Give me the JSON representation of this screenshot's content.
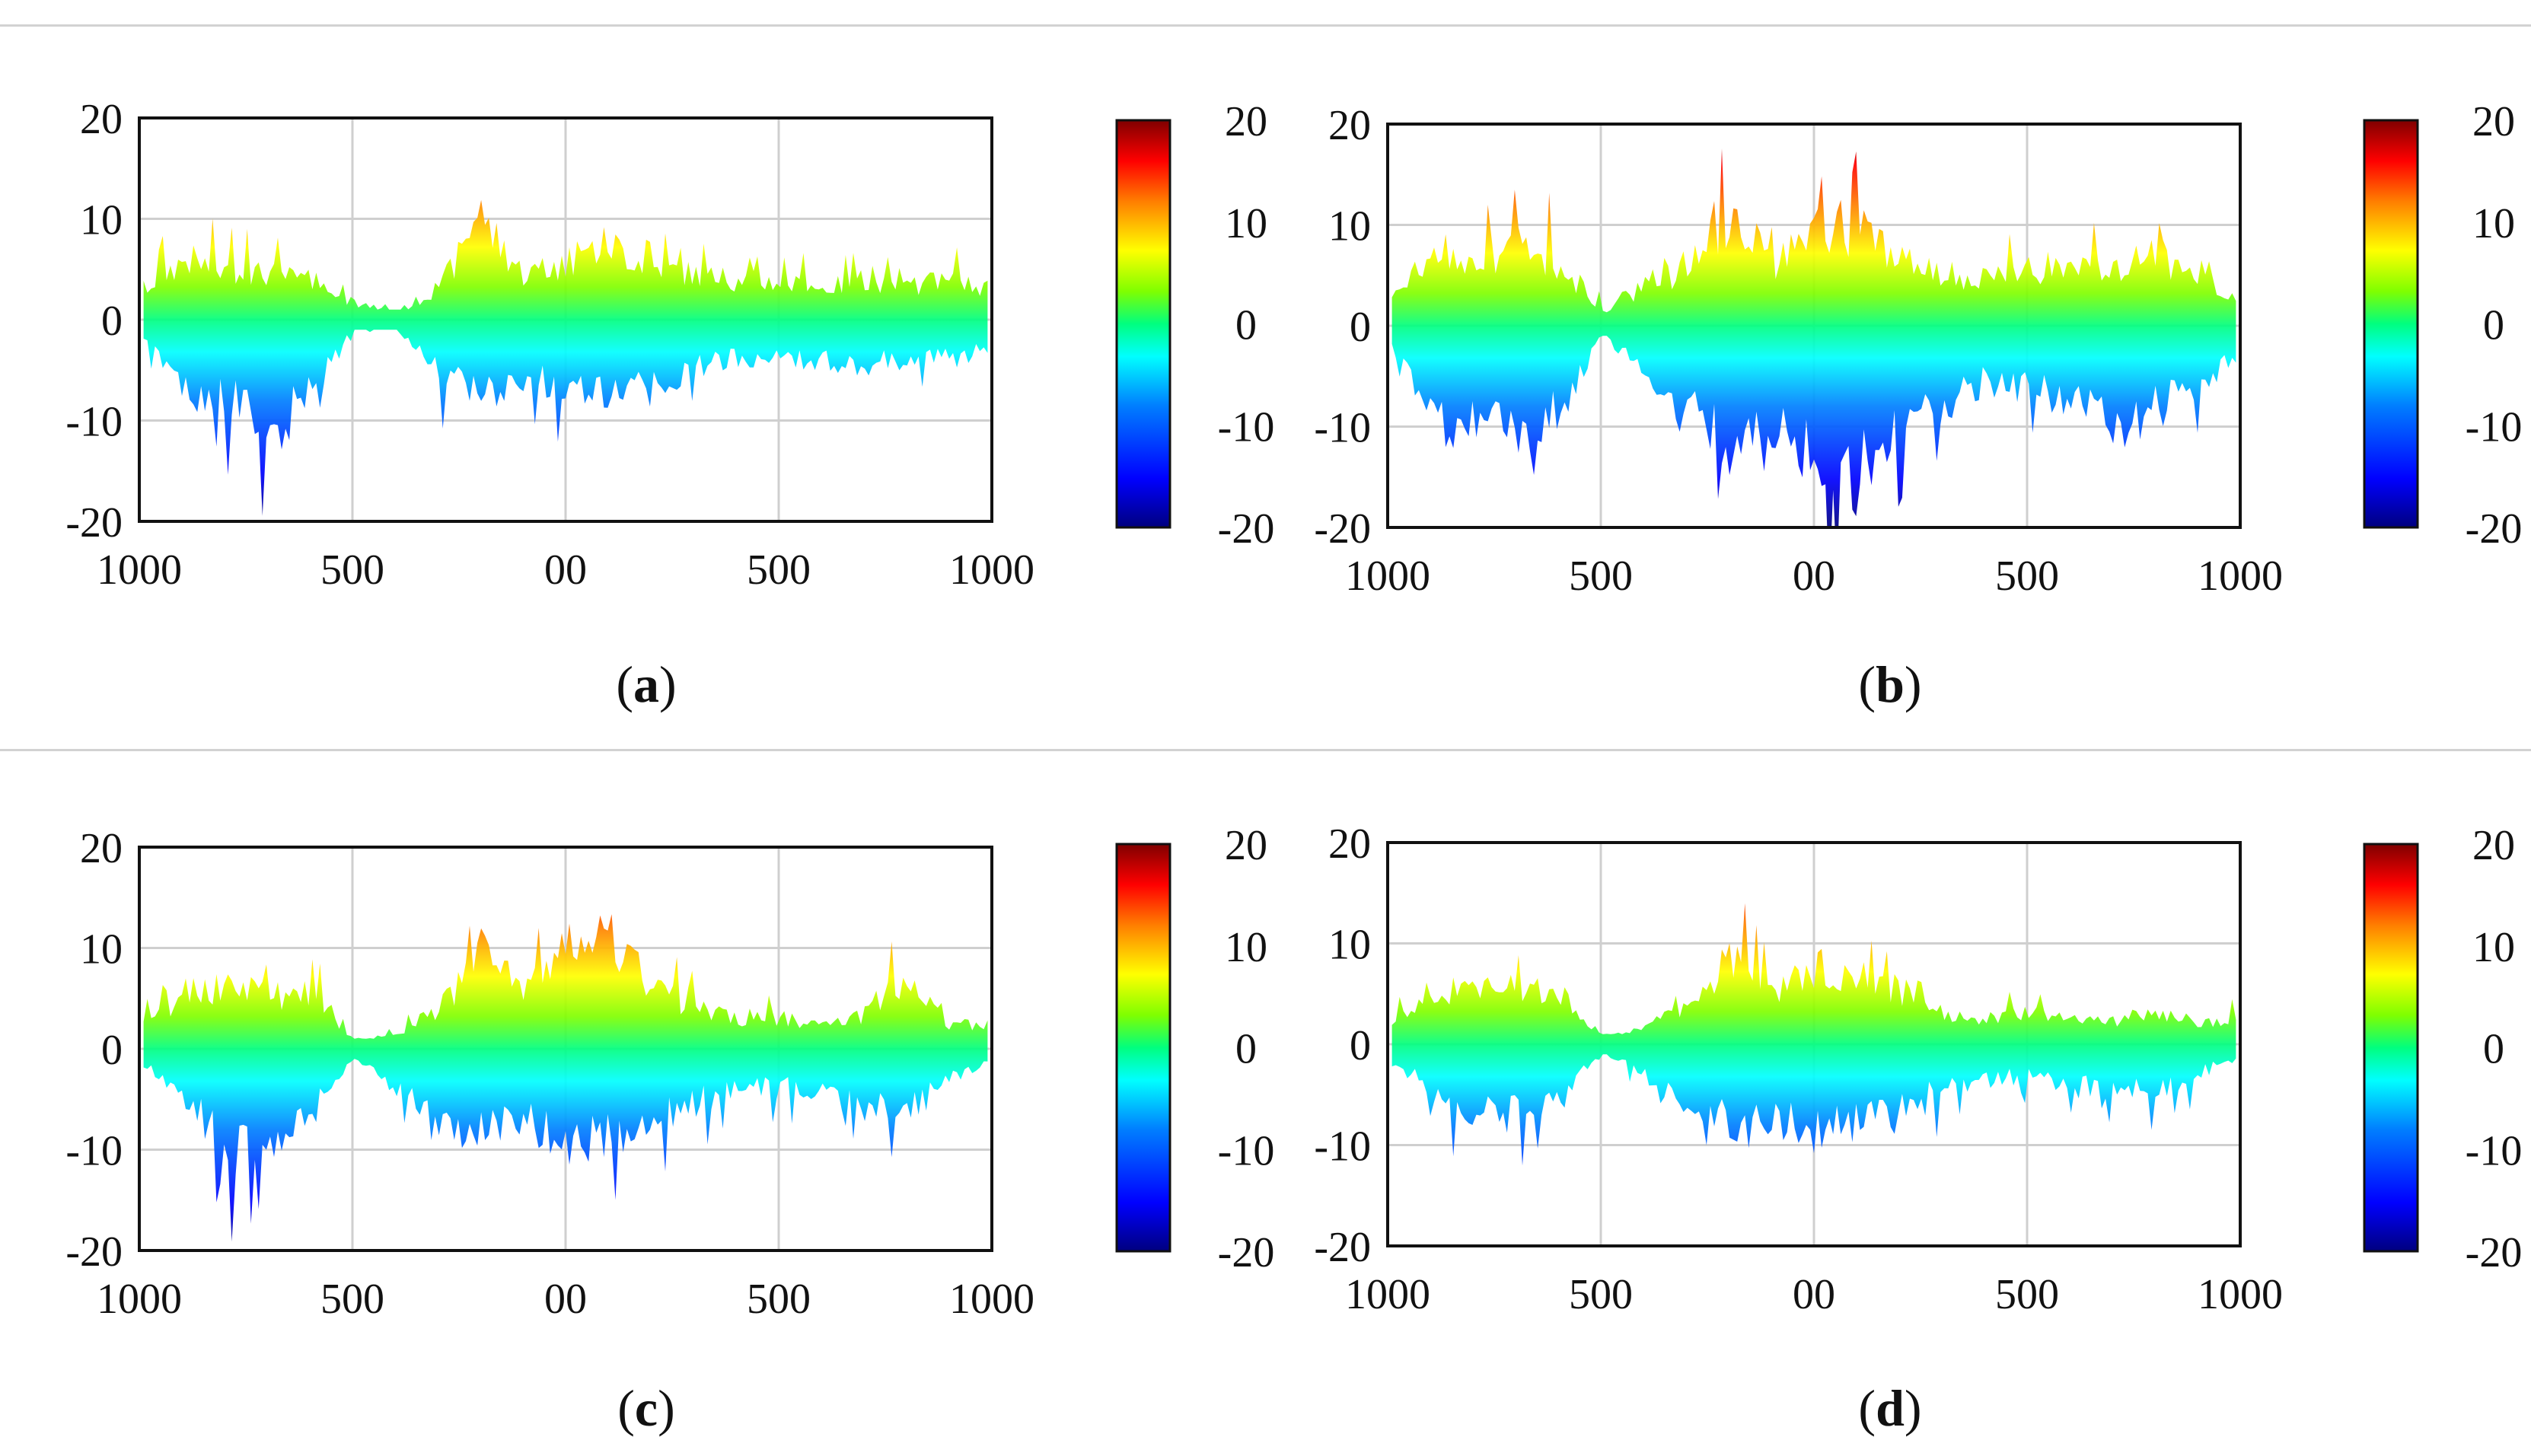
{
  "figure": {
    "panels": [
      {
        "id": "a",
        "caption_letter": "a"
      },
      {
        "id": "b",
        "caption_letter": "b"
      },
      {
        "id": "c",
        "caption_letter": "c"
      },
      {
        "id": "d",
        "caption_letter": "d"
      }
    ]
  },
  "colorbar": {
    "ticks": [
      "20",
      "10",
      "0",
      "-10",
      "-20"
    ],
    "range": [
      -20,
      20
    ],
    "colormap": [
      "#00007f",
      "#0000ff",
      "#007fff",
      "#00ffff",
      "#00ff7f",
      "#7fff00",
      "#ffff00",
      "#ff7f00",
      "#ff0000",
      "#7f0000"
    ]
  },
  "chart_data": [
    {
      "panel": "a",
      "type": "area",
      "x_tick_labels": [
        "1000",
        "500",
        "00",
        "500",
        "1000"
      ],
      "y_tick_labels": [
        "20",
        "10",
        "0",
        "-10",
        "-20"
      ],
      "ylim": [
        -20,
        20
      ],
      "grid": true,
      "x": [
        0,
        0.05,
        0.1,
        0.15,
        0.2,
        0.25,
        0.3,
        0.35,
        0.4,
        0.45,
        0.5,
        0.55,
        0.6,
        0.65,
        0.7,
        0.75,
        0.8,
        0.85,
        0.9,
        0.95,
        1
      ],
      "upper": [
        4,
        8,
        6,
        6,
        5,
        2,
        1,
        4,
        13,
        6,
        7,
        10,
        7,
        6,
        5,
        5,
        4,
        5,
        4,
        5,
        4
      ],
      "lower": [
        -2,
        -9,
        -10,
        -15,
        -9,
        -1,
        -1,
        -7,
        -9,
        -8,
        -8,
        -9,
        -9,
        -6,
        -5,
        -5,
        -5,
        -6,
        -5,
        -4,
        -3
      ]
    },
    {
      "panel": "b",
      "type": "area",
      "x_tick_labels": [
        "1000",
        "500",
        "00",
        "500",
        "1000"
      ],
      "y_tick_labels": [
        "20",
        "10",
        "0",
        "-10",
        "-20"
      ],
      "ylim": [
        -20,
        20
      ],
      "grid": true,
      "x": [
        0,
        0.05,
        0.1,
        0.15,
        0.2,
        0.25,
        0.3,
        0.35,
        0.4,
        0.45,
        0.5,
        0.55,
        0.6,
        0.65,
        0.7,
        0.75,
        0.8,
        0.85,
        0.9,
        0.95,
        1
      ],
      "upper": [
        4,
        9,
        8,
        10,
        8,
        2,
        5,
        7,
        14,
        8,
        12,
        12,
        8,
        7,
        6,
        7,
        8,
        6,
        10,
        6,
        4
      ],
      "lower": [
        -3,
        -13,
        -12,
        -13,
        -11,
        -1,
        -6,
        -11,
        -15,
        -12,
        -16,
        -19,
        -13,
        -10,
        -7,
        -8,
        -9,
        -13,
        -11,
        -8,
        -4
      ]
    },
    {
      "panel": "c",
      "type": "area",
      "x_tick_labels": [
        "1000",
        "500",
        "00",
        "500",
        "1000"
      ],
      "y_tick_labels": [
        "20",
        "10",
        "0",
        "-10",
        "-20"
      ],
      "ylim": [
        -20,
        20
      ],
      "grid": true,
      "x": [
        0,
        0.05,
        0.1,
        0.15,
        0.2,
        0.25,
        0.3,
        0.35,
        0.4,
        0.45,
        0.5,
        0.55,
        0.6,
        0.65,
        0.7,
        0.75,
        0.8,
        0.85,
        0.9,
        0.95,
        1
      ],
      "upper": [
        3,
        7,
        8,
        7,
        7,
        1,
        2,
        5,
        12,
        7,
        13,
        15,
        8,
        5,
        4,
        4,
        3,
        4,
        9,
        3,
        3
      ],
      "lower": [
        -2,
        -6,
        -13,
        -11,
        -8,
        -1,
        -5,
        -9,
        -10,
        -9,
        -12,
        -11,
        -9,
        -7,
        -5,
        -5,
        -5,
        -7,
        -9,
        -4,
        -2
      ]
    },
    {
      "panel": "d",
      "type": "area",
      "x_tick_labels": [
        "1000",
        "500",
        "00",
        "500",
        "1000"
      ],
      "y_tick_labels": [
        "20",
        "10",
        "0",
        "-10",
        "-20"
      ],
      "ylim": [
        -20,
        20
      ],
      "grid": true,
      "x": [
        0,
        0.05,
        0.1,
        0.15,
        0.2,
        0.25,
        0.3,
        0.35,
        0.4,
        0.45,
        0.5,
        0.55,
        0.6,
        0.65,
        0.7,
        0.75,
        0.8,
        0.85,
        0.9,
        0.95,
        1
      ],
      "upper": [
        3,
        6,
        8,
        7,
        7,
        1,
        2,
        5,
        11,
        6,
        10,
        9,
        7,
        4,
        3,
        4,
        3,
        3,
        4,
        3,
        3
      ],
      "lower": [
        -2,
        -6,
        -9,
        -9,
        -7,
        -1,
        -4,
        -8,
        -10,
        -9,
        -11,
        -10,
        -8,
        -6,
        -5,
        -4,
        -5,
        -6,
        -6,
        -4,
        -2
      ]
    }
  ]
}
